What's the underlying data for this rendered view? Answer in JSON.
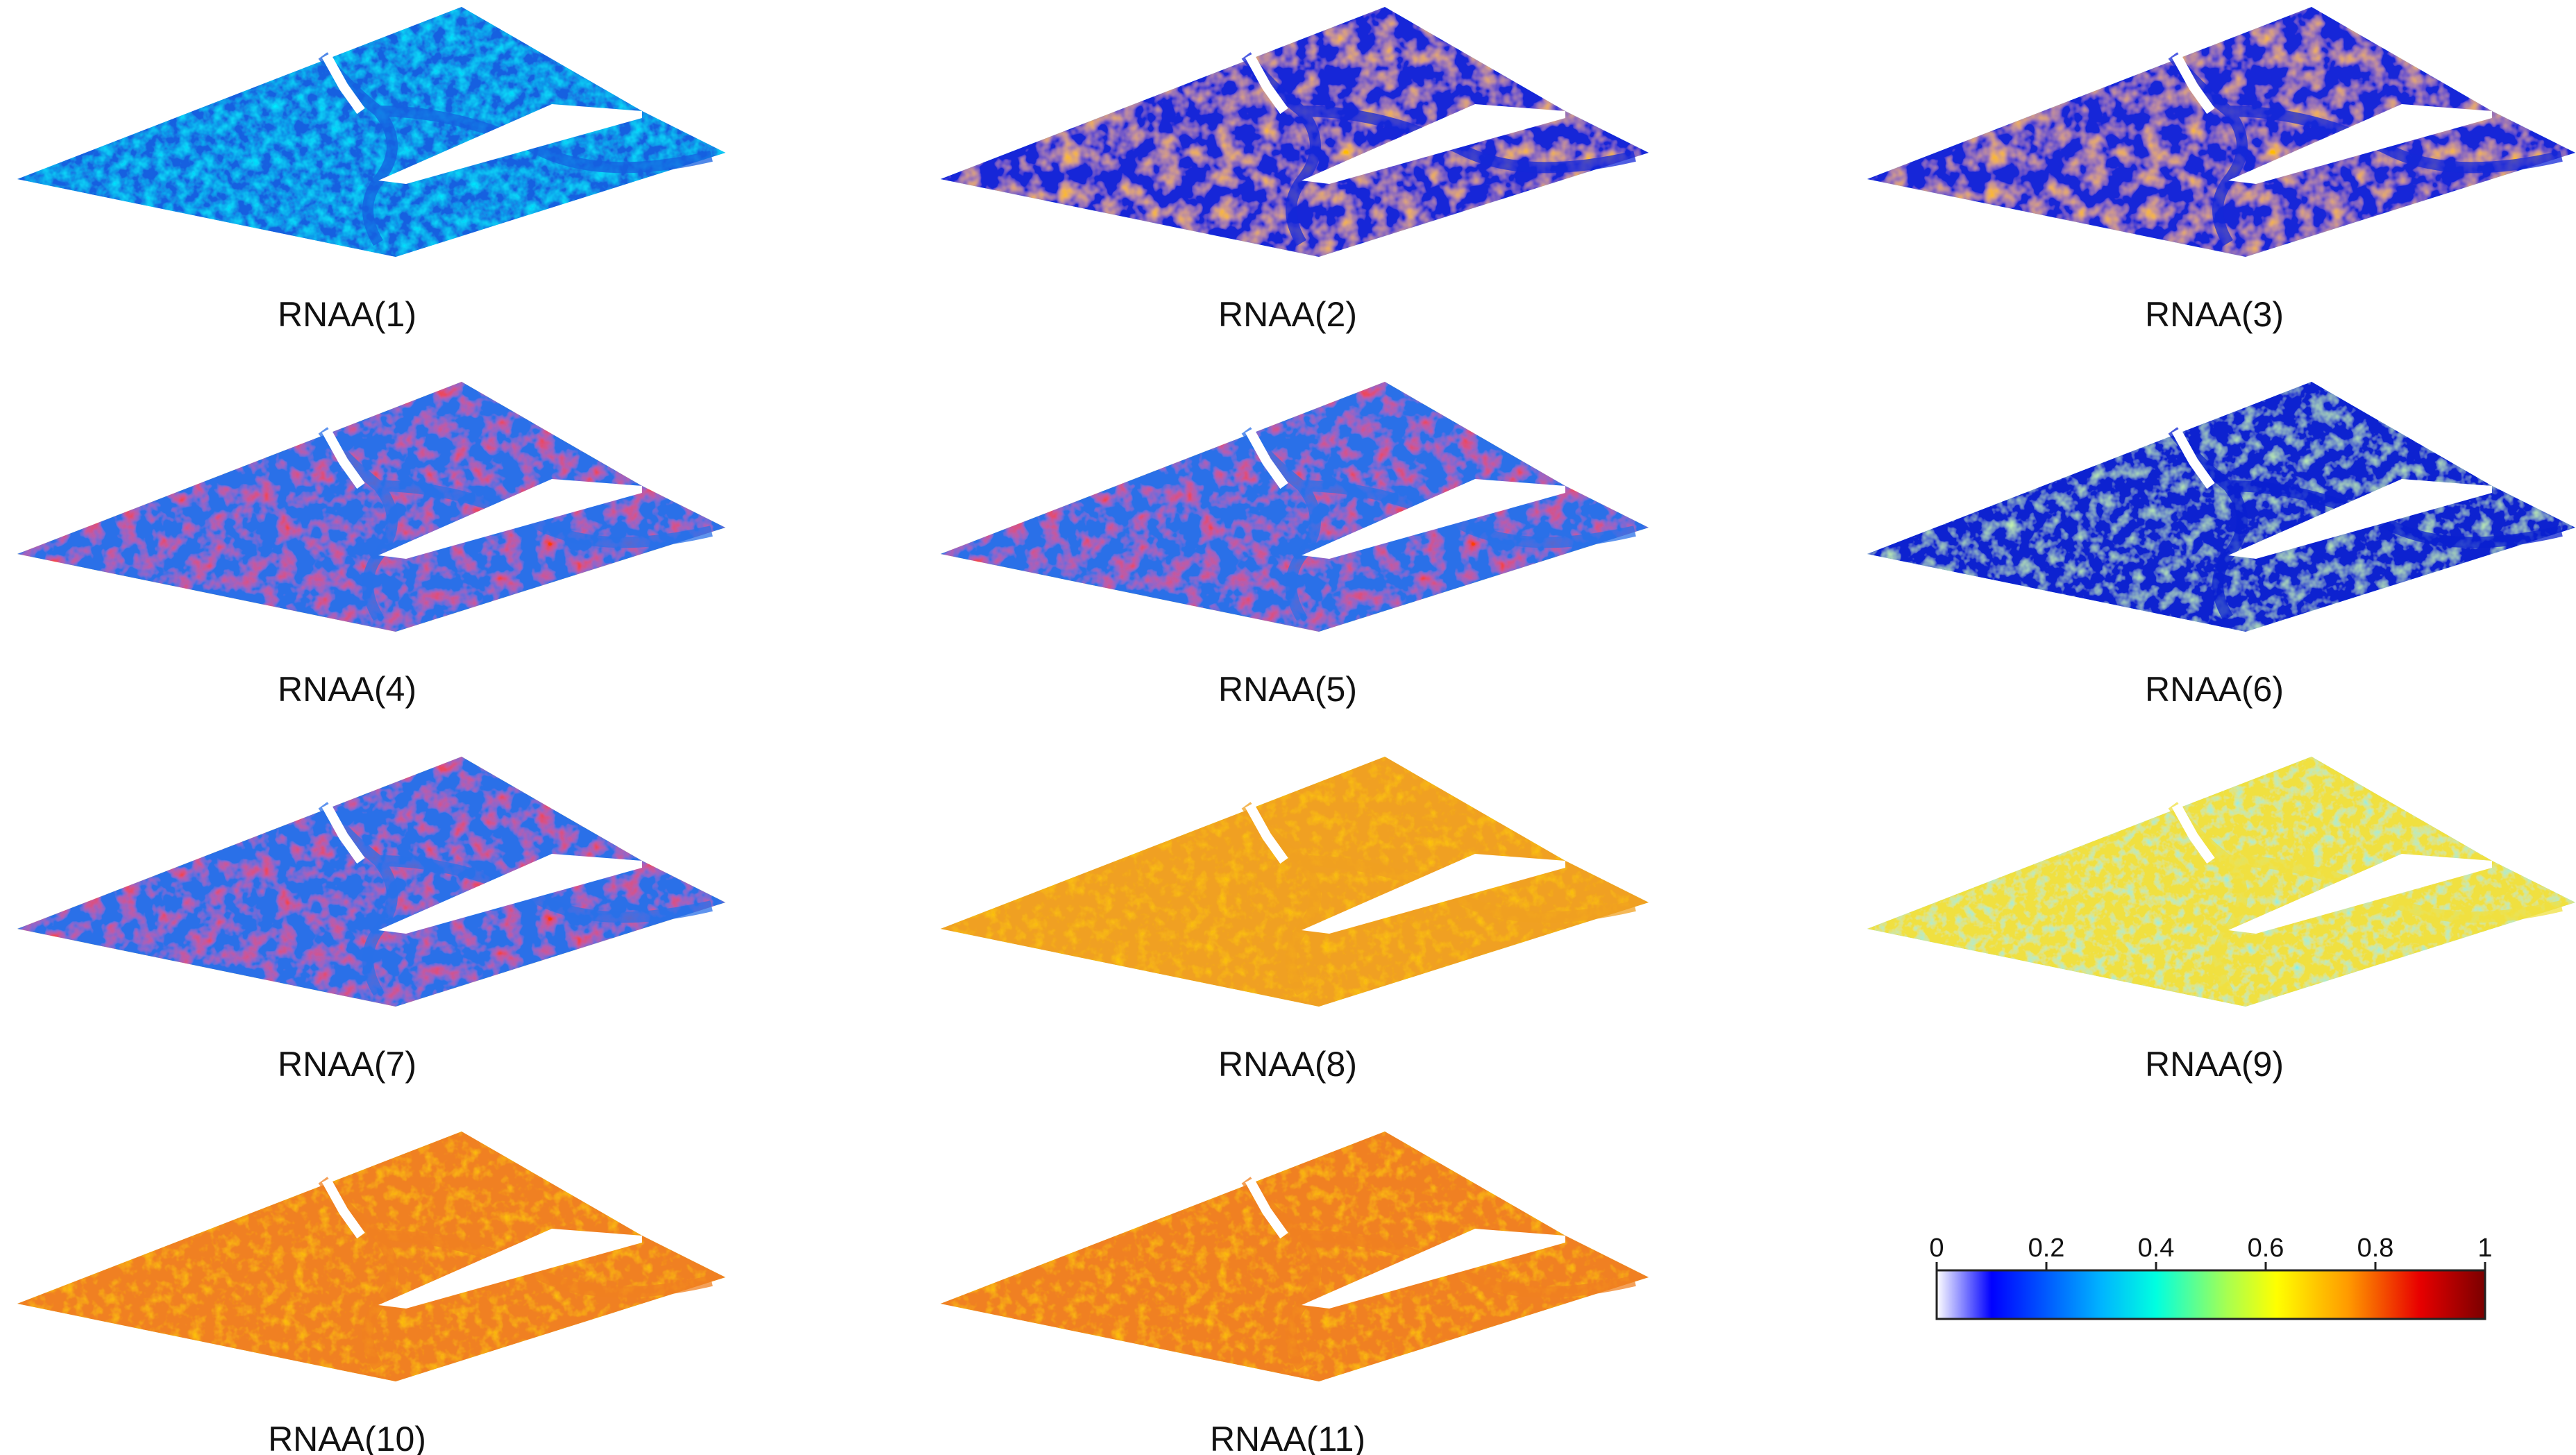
{
  "figure": {
    "panels": [
      {
        "label": "RNAA(1)",
        "tone": "blue-cyan dominant, low values"
      },
      {
        "label": "RNAA(2)",
        "tone": "mixed blue and orange-red"
      },
      {
        "label": "RNAA(3)",
        "tone": "mixed blue and orange-red"
      },
      {
        "label": "RNAA(4)",
        "tone": "yellow-orange with red river corridors"
      },
      {
        "label": "RNAA(5)",
        "tone": "yellow-orange with red river corridors"
      },
      {
        "label": "RNAA(6)",
        "tone": "blue dominant, low values"
      },
      {
        "label": "RNAA(7)",
        "tone": "yellow-orange with red river corridors"
      },
      {
        "label": "RNAA(8)",
        "tone": "yellow-green, moderate values"
      },
      {
        "label": "RNAA(9)",
        "tone": "green-cyan, moderate values"
      },
      {
        "label": "RNAA(10)",
        "tone": "yellow-green, moderate values"
      },
      {
        "label": "RNAA(11)",
        "tone": "yellow-green, moderate values"
      }
    ],
    "colorbar": {
      "ticks": [
        "0",
        "0.2",
        "0.4",
        "0.6",
        "0.8",
        "1"
      ],
      "range": [
        0,
        1
      ],
      "colormap": [
        "#ffffff",
        "#0000ff",
        "#00b4ff",
        "#00ffe0",
        "#a8ff50",
        "#ffff00",
        "#ff9a00",
        "#e80000",
        "#7a0000"
      ]
    }
  }
}
